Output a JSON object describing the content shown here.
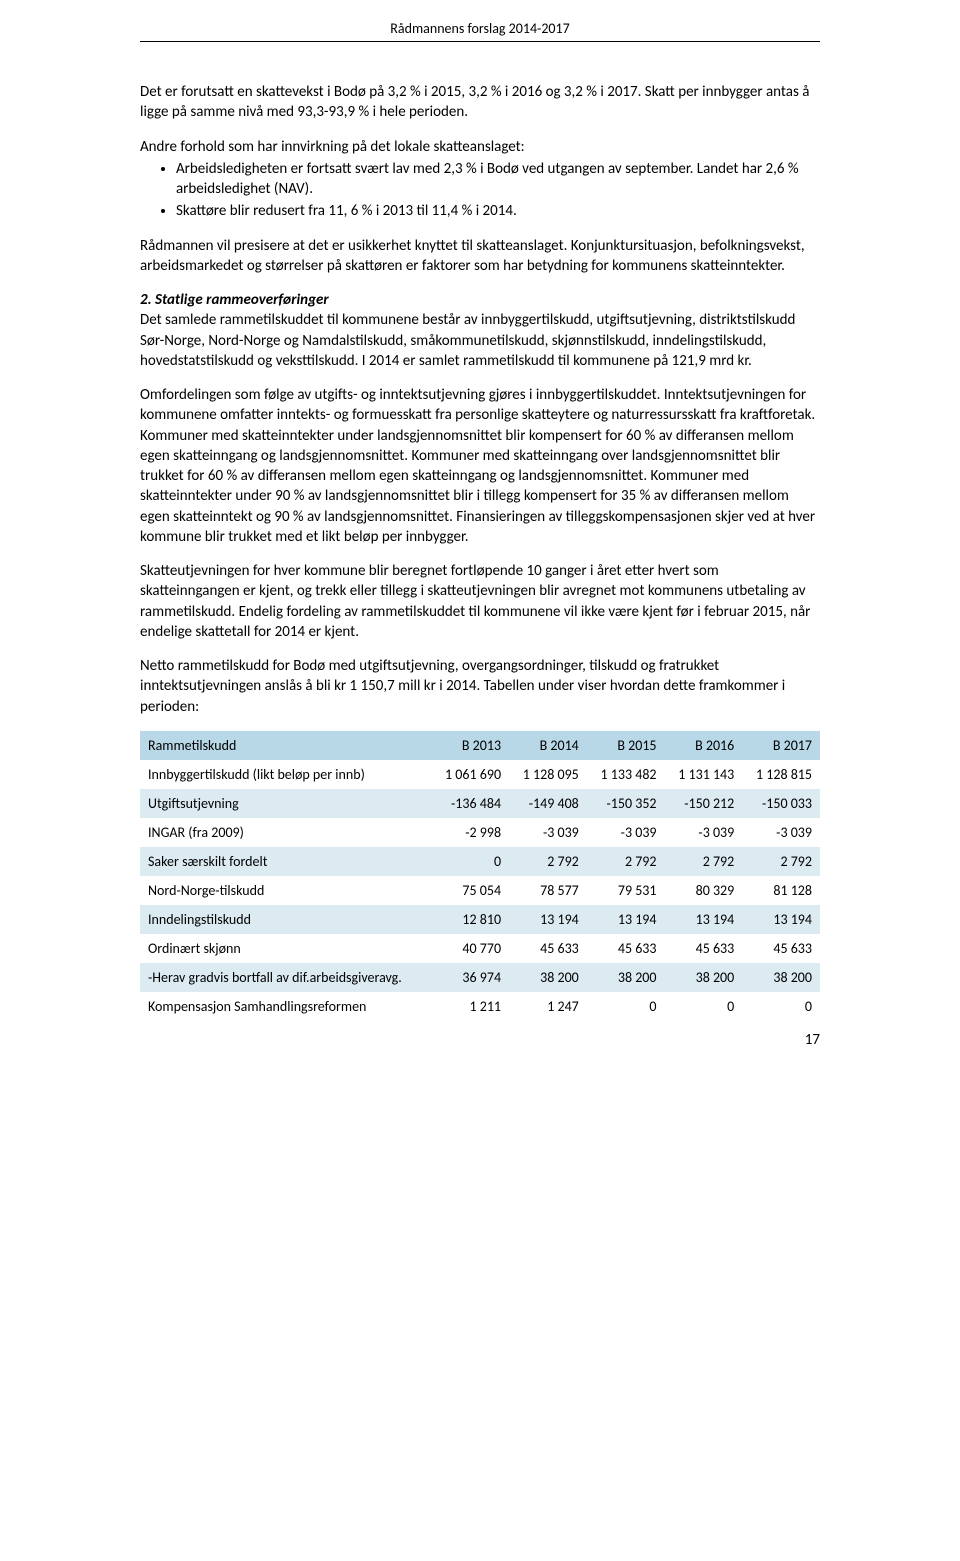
{
  "header": "Rådmannens forslag 2014-2017",
  "p1": "Det er forutsatt en skattevekst i Bodø på 3,2 % i 2015, 3,2 % i 2016 og 3,2 % i 2017. Skatt per innbygger antas å ligge på samme nivå med 93,3-93,9 % i hele perioden.",
  "p2_intro": "Andre forhold som har innvirkning på det lokale skatteanslaget:",
  "bullets": [
    "Arbeidsledigheten er fortsatt svært lav med 2,3 % i Bodø ved utgangen av september. Landet har 2,6 % arbeidsledighet (NAV).",
    "Skattøre blir redusert fra 11, 6 % i 2013 til 11,4 % i 2014."
  ],
  "p3": "Rådmannen vil presisere at det er usikkerhet knyttet til skatteanslaget. Konjunktursituasjon, befolkningsvekst, arbeidsmarkedet og størrelser på skattøren er faktorer som har betydning for kommunens skatteinntekter.",
  "s2_title": "2. Statlige rammeoverføringer",
  "s2_p1_rest": "Det samlede rammetilskuddet til kommunene består av innbyggertilskudd, utgiftsutjevning, distriktstilskudd Sør-Norge, Nord-Norge og Namdalstilskudd, småkommunetilskudd, skjønnstilskudd, inndelingstilskudd, hovedstatstilskudd og veksttilskudd. I 2014 er samlet rammetilskudd til kommunene på 121,9 mrd kr.",
  "s2_p2": "Omfordelingen som følge av utgifts- og inntektsutjevning gjøres i innbyggertilskuddet. Inntektsutjevningen for kommunene omfatter inntekts- og formuesskatt fra personlige skatteytere og naturressursskatt fra kraftforetak. Kommuner med skatteinntekter under landsgjennomsnittet blir kompensert for 60 % av differansen mellom egen skatteinngang og landsgjennomsnittet. Kommuner med skatteinngang over landsgjennomsnittet blir trukket for 60 % av differansen mellom egen skatteinngang og landsgjennomsnittet. Kommuner med skatteinntekter under 90 % av landsgjennomsnittet blir i tillegg kompensert for 35 % av differansen mellom egen skatteinntekt og 90 % av landsgjennomsnittet. Finansieringen av tilleggskompensasjonen skjer ved at hver kommune blir trukket med et likt beløp per innbygger.",
  "s2_p3": "Skatteutjevningen for hver kommune blir beregnet fortløpende 10 ganger i året etter hvert som skatteinngangen er kjent, og trekk eller tillegg i skatteutjevningen blir avregnet mot kommunens utbetaling av rammetilskudd. Endelig fordeling av rammetilskuddet til kommunene vil ikke være kjent før i februar 2015, når endelige skattetall for 2014 er kjent.",
  "s2_p4": "Netto rammetilskudd for Bodø med utgiftsutjevning, overgangsordninger, tilskudd og fratrukket inntektsutjevningen anslås å bli kr 1 150,7 mill kr i 2014. Tabellen under viser hvordan dette framkommer i perioden:",
  "table": {
    "header_bg": "#b8d8e8",
    "row_alt_bg": "#dceaf2",
    "columns": [
      "Rammetilskudd",
      "B 2013",
      "B 2014",
      "B 2015",
      "B 2016",
      "B 2017"
    ],
    "rows": [
      [
        "Innbyggertilskudd (likt beløp per innb)",
        "1 061 690",
        "1 128 095",
        "1 133 482",
        "1 131 143",
        "1 128 815"
      ],
      [
        "Utgiftsutjevning",
        "-136 484",
        "-149 408",
        "-150 352",
        "-150 212",
        "-150 033"
      ],
      [
        "INGAR (fra 2009)",
        "-2 998",
        "-3 039",
        "-3 039",
        "-3 039",
        "-3 039"
      ],
      [
        "Saker særskilt fordelt",
        "0",
        "2 792",
        "2 792",
        "2 792",
        "2 792"
      ],
      [
        "Nord-Norge-tilskudd",
        "75 054",
        "78 577",
        "79 531",
        "80 329",
        "81 128"
      ],
      [
        "Inndelingstilskudd",
        "12 810",
        "13 194",
        "13 194",
        "13 194",
        "13 194"
      ],
      [
        "Ordinært skjønn",
        "40 770",
        "45 633",
        "45 633",
        "45 633",
        "45 633"
      ],
      [
        "-Herav gradvis bortfall av dif.arbeidsgiveravg.",
        "36 974",
        "38 200",
        "38 200",
        "38 200",
        "38 200"
      ],
      [
        "Kompensasjon Samhandlingsreformen",
        "1 211",
        "1 247",
        "0",
        "0",
        "0"
      ]
    ]
  },
  "page_number": "17"
}
